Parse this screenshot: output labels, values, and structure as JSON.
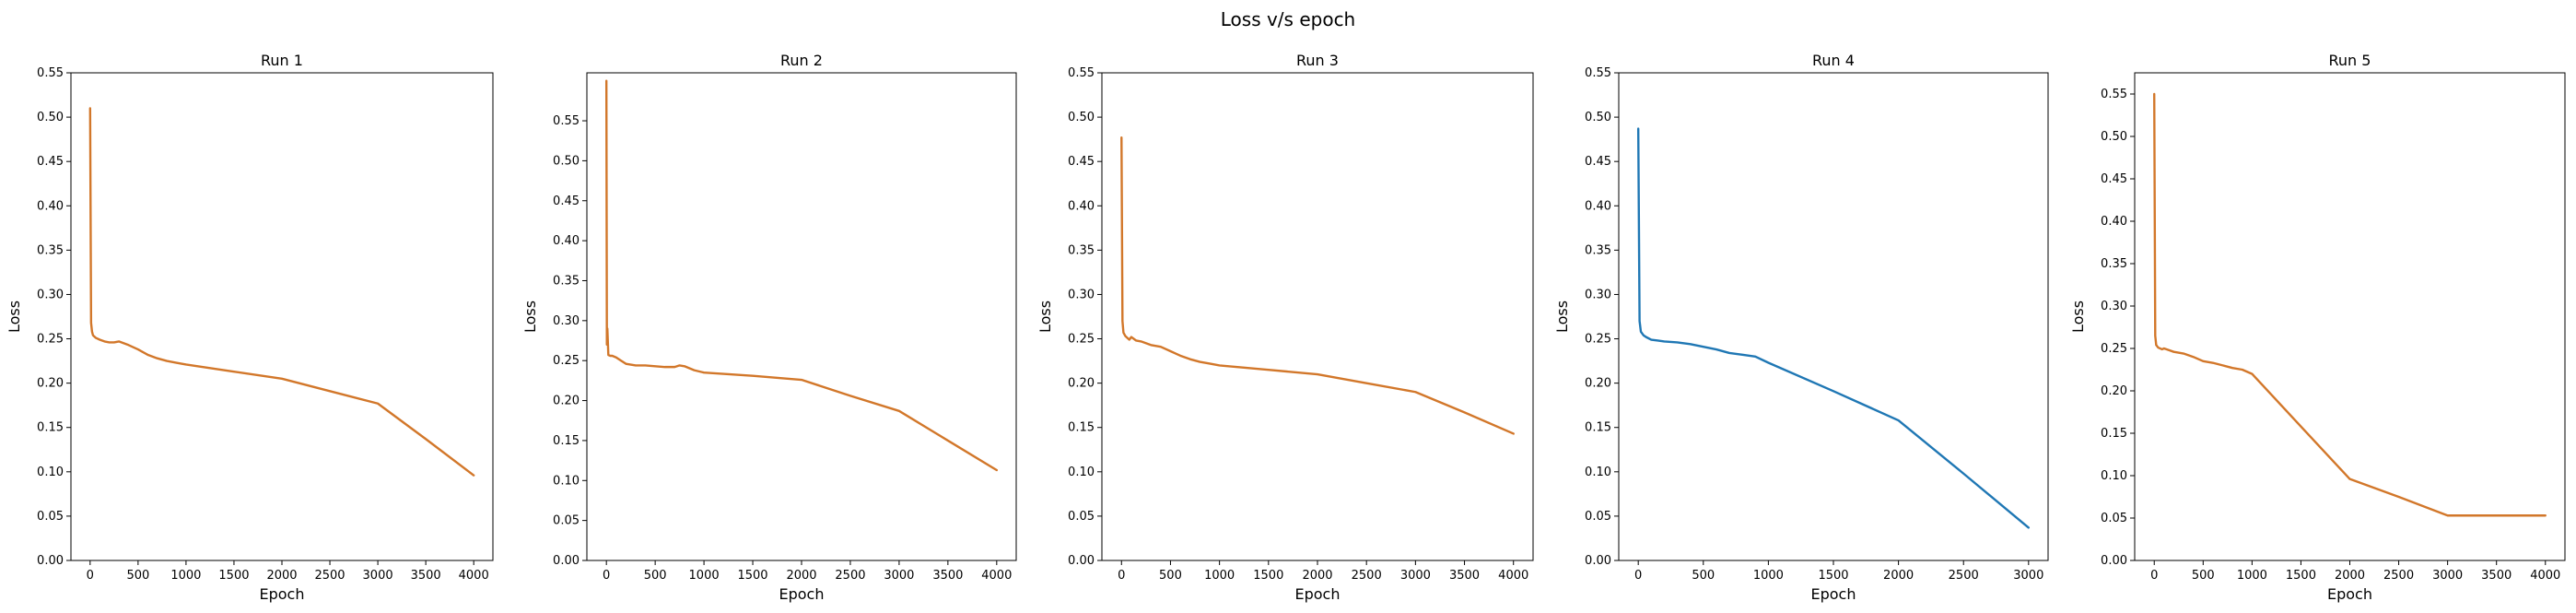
{
  "title": "Loss v/s epoch",
  "colors": {
    "orange": "#d2772a",
    "blue": "#1f77b4"
  },
  "chart_data": [
    {
      "type": "line",
      "title": "Run 1",
      "xlabel": "Epoch",
      "ylabel": "Loss",
      "xlim": [
        -200,
        4200
      ],
      "ylim": [
        0,
        0.55
      ],
      "xticks": [
        0,
        500,
        1000,
        1500,
        2000,
        2500,
        3000,
        3500,
        4000
      ],
      "yticks": [
        0.0,
        0.05,
        0.1,
        0.15,
        0.2,
        0.25,
        0.3,
        0.35,
        0.4,
        0.45,
        0.5,
        0.55
      ],
      "grid": false,
      "series": [
        {
          "color": "#d2772a",
          "x": [
            0,
            10,
            20,
            30,
            60,
            100,
            150,
            200,
            250,
            300,
            400,
            500,
            600,
            700,
            800,
            900,
            1000,
            1500,
            2000,
            2500,
            3000,
            3500,
            4000
          ],
          "y": [
            0.51,
            0.268,
            0.258,
            0.254,
            0.251,
            0.249,
            0.247,
            0.246,
            0.246,
            0.247,
            0.243,
            0.238,
            0.232,
            0.228,
            0.225,
            0.223,
            0.221,
            0.213,
            0.205,
            0.191,
            0.177,
            0.137,
            0.096
          ]
        }
      ]
    },
    {
      "type": "line",
      "title": "Run 2",
      "xlabel": "Epoch",
      "ylabel": "Loss",
      "xlim": [
        -200,
        4200
      ],
      "ylim": [
        0,
        0.61
      ],
      "xticks": [
        0,
        500,
        1000,
        1500,
        2000,
        2500,
        3000,
        3500,
        4000
      ],
      "yticks": [
        0.0,
        0.05,
        0.1,
        0.15,
        0.2,
        0.25,
        0.3,
        0.35,
        0.4,
        0.45,
        0.5,
        0.55
      ],
      "grid": false,
      "series": [
        {
          "color": "#d2772a",
          "x": [
            0,
            5,
            10,
            20,
            40,
            60,
            100,
            150,
            200,
            300,
            400,
            500,
            600,
            700,
            750,
            800,
            900,
            1000,
            1500,
            2000,
            2500,
            3000,
            3500,
            4000
          ],
          "y": [
            0.6,
            0.27,
            0.29,
            0.257,
            0.256,
            0.256,
            0.254,
            0.25,
            0.246,
            0.244,
            0.244,
            0.243,
            0.242,
            0.242,
            0.244,
            0.243,
            0.238,
            0.235,
            0.231,
            0.226,
            0.206,
            0.187,
            0.15,
            0.113
          ]
        }
      ]
    },
    {
      "type": "line",
      "title": "Run 3",
      "xlabel": "Epoch",
      "ylabel": "Loss",
      "xlim": [
        -200,
        4200
      ],
      "ylim": [
        0,
        0.55
      ],
      "xticks": [
        0,
        500,
        1000,
        1500,
        2000,
        2500,
        3000,
        3500,
        4000
      ],
      "yticks": [
        0.0,
        0.05,
        0.1,
        0.15,
        0.2,
        0.25,
        0.3,
        0.35,
        0.4,
        0.45,
        0.5,
        0.55
      ],
      "grid": false,
      "series": [
        {
          "color": "#d2772a",
          "x": [
            0,
            10,
            20,
            40,
            60,
            80,
            100,
            150,
            200,
            300,
            400,
            500,
            600,
            700,
            800,
            900,
            1000,
            1500,
            2000,
            2500,
            3000,
            3500,
            4000
          ],
          "y": [
            0.477,
            0.27,
            0.257,
            0.253,
            0.251,
            0.249,
            0.252,
            0.248,
            0.247,
            0.243,
            0.241,
            0.236,
            0.231,
            0.227,
            0.224,
            0.222,
            0.22,
            0.215,
            0.21,
            0.2,
            0.19,
            0.167,
            0.143
          ]
        }
      ]
    },
    {
      "type": "line",
      "title": "Run 4",
      "xlabel": "Epoch",
      "ylabel": "Loss",
      "xlim": [
        -150,
        3150
      ],
      "ylim": [
        0,
        0.55
      ],
      "xticks": [
        0,
        500,
        1000,
        1500,
        2000,
        2500,
        3000
      ],
      "yticks": [
        0.0,
        0.05,
        0.1,
        0.15,
        0.2,
        0.25,
        0.3,
        0.35,
        0.4,
        0.45,
        0.5,
        0.55
      ],
      "grid": false,
      "series": [
        {
          "color": "#1f77b4",
          "x": [
            0,
            10,
            20,
            40,
            60,
            100,
            150,
            200,
            300,
            400,
            500,
            600,
            700,
            800,
            900,
            1000,
            1500,
            2000,
            2500,
            3000
          ],
          "y": [
            0.487,
            0.27,
            0.258,
            0.254,
            0.252,
            0.249,
            0.248,
            0.247,
            0.246,
            0.244,
            0.241,
            0.238,
            0.234,
            0.232,
            0.23,
            0.223,
            0.191,
            0.158,
            0.098,
            0.037
          ]
        }
      ]
    },
    {
      "type": "line",
      "title": "Run 5",
      "xlabel": "Epoch",
      "ylabel": "Loss",
      "xlim": [
        -200,
        4200
      ],
      "ylim": [
        0,
        0.575
      ],
      "xticks": [
        0,
        500,
        1000,
        1500,
        2000,
        2500,
        3000,
        3500,
        4000
      ],
      "yticks": [
        0.0,
        0.05,
        0.1,
        0.15,
        0.2,
        0.25,
        0.3,
        0.35,
        0.4,
        0.45,
        0.5,
        0.55
      ],
      "grid": false,
      "series": [
        {
          "color": "#d2772a",
          "x": [
            0,
            10,
            20,
            40,
            80,
            100,
            200,
            300,
            400,
            500,
            600,
            700,
            800,
            900,
            1000,
            1500,
            2000,
            2500,
            3000,
            3500,
            4000
          ],
          "y": [
            0.55,
            0.265,
            0.254,
            0.251,
            0.249,
            0.25,
            0.246,
            0.244,
            0.24,
            0.235,
            0.233,
            0.23,
            0.227,
            0.225,
            0.22,
            0.158,
            0.096,
            0.075,
            0.053,
            0.053,
            0.053
          ]
        }
      ]
    }
  ]
}
